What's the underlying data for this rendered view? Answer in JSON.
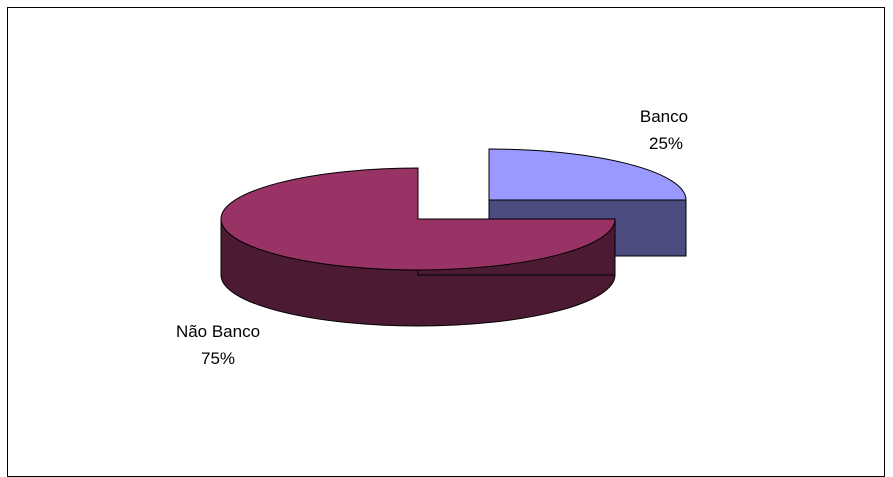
{
  "chart_data": {
    "type": "pie",
    "style": "3d-exploded",
    "categories": [
      "Banco",
      "Não Banco"
    ],
    "values": [
      25,
      75
    ],
    "labels": [
      "25%",
      "75%"
    ],
    "colors": {
      "Banco": {
        "top": "#9999ff",
        "side": "#4c4c80"
      },
      "Não Banco": {
        "top": "#993366",
        "side": "#4c1a33"
      }
    },
    "title": "",
    "legend": "none"
  }
}
